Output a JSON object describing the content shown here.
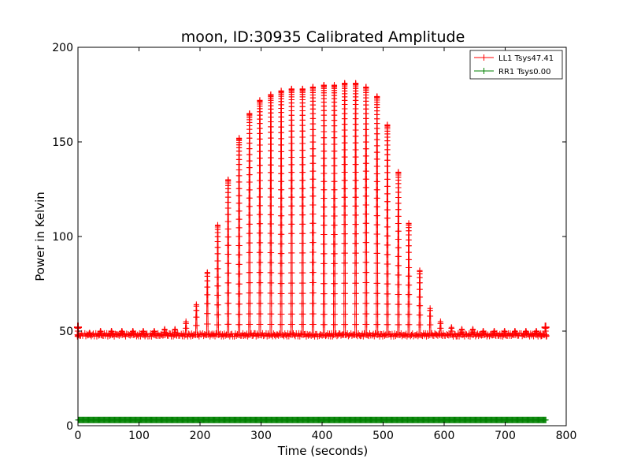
{
  "chart_data": {
    "type": "line",
    "title": "moon, ID:30935 Calibrated Amplitude",
    "xlabel": "Time (seconds)",
    "ylabel": "Power in Kelvin",
    "xlim": [
      0,
      800
    ],
    "ylim": [
      0,
      200
    ],
    "xticks": [
      0,
      100,
      200,
      300,
      400,
      500,
      600,
      700,
      800
    ],
    "yticks": [
      0,
      50,
      100,
      150,
      200
    ],
    "grid": false,
    "legend_position": "top-right",
    "marker": "plus",
    "series": [
      {
        "name": "LL1 Tsys47.41",
        "color": "#ff0000",
        "time_range": [
          0,
          770
        ],
        "baseline": 48,
        "scan_period": 17.4,
        "peaks": [
          {
            "t": 0,
            "v": 52
          },
          {
            "t": 19,
            "v": 49
          },
          {
            "t": 37,
            "v": 50
          },
          {
            "t": 55,
            "v": 50
          },
          {
            "t": 72,
            "v": 50
          },
          {
            "t": 90,
            "v": 50
          },
          {
            "t": 107,
            "v": 50
          },
          {
            "t": 125,
            "v": 50
          },
          {
            "t": 142,
            "v": 51
          },
          {
            "t": 159,
            "v": 51
          },
          {
            "t": 177,
            "v": 55
          },
          {
            "t": 194,
            "v": 64
          },
          {
            "t": 212,
            "v": 81
          },
          {
            "t": 229,
            "v": 106
          },
          {
            "t": 246,
            "v": 130
          },
          {
            "t": 264,
            "v": 152
          },
          {
            "t": 281,
            "v": 165
          },
          {
            "t": 298,
            "v": 172
          },
          {
            "t": 316,
            "v": 175
          },
          {
            "t": 333,
            "v": 177
          },
          {
            "t": 350,
            "v": 178
          },
          {
            "t": 368,
            "v": 178
          },
          {
            "t": 385,
            "v": 179
          },
          {
            "t": 403,
            "v": 180
          },
          {
            "t": 420,
            "v": 180
          },
          {
            "t": 437,
            "v": 181
          },
          {
            "t": 455,
            "v": 181
          },
          {
            "t": 472,
            "v": 179
          },
          {
            "t": 490,
            "v": 174
          },
          {
            "t": 507,
            "v": 159
          },
          {
            "t": 525,
            "v": 134
          },
          {
            "t": 542,
            "v": 107
          },
          {
            "t": 560,
            "v": 82
          },
          {
            "t": 577,
            "v": 62
          },
          {
            "t": 594,
            "v": 55
          },
          {
            "t": 612,
            "v": 52
          },
          {
            "t": 629,
            "v": 51
          },
          {
            "t": 647,
            "v": 51
          },
          {
            "t": 664,
            "v": 50
          },
          {
            "t": 682,
            "v": 50
          },
          {
            "t": 699,
            "v": 50
          },
          {
            "t": 716,
            "v": 50
          },
          {
            "t": 734,
            "v": 50
          },
          {
            "t": 751,
            "v": 50
          },
          {
            "t": 766,
            "v": 52
          }
        ]
      },
      {
        "name": "RR1 Tsys0.00",
        "color": "#008000",
        "time_range": [
          0,
          770
        ],
        "baseline": 3
      }
    ]
  }
}
